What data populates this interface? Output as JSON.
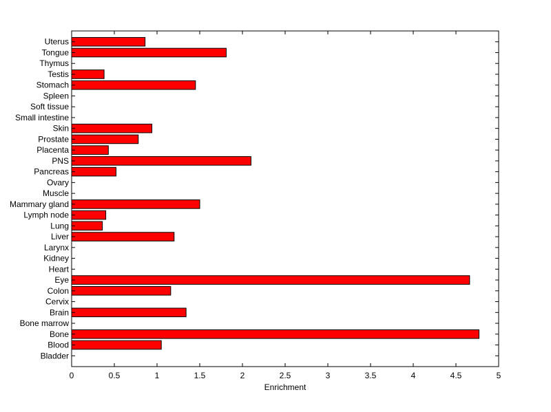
{
  "chart_data": {
    "type": "bar",
    "orientation": "horizontal",
    "title": "",
    "xlabel": "Enrichment",
    "ylabel": "",
    "xlim": [
      0,
      5
    ],
    "xticks": [
      "0",
      "0.5",
      "1",
      "1.5",
      "2",
      "2.5",
      "3",
      "3.5",
      "4",
      "4.5",
      "5"
    ],
    "grid": false,
    "bar_color": "#ff0000",
    "categories": [
      "Uterus",
      "Tongue",
      "Thymus",
      "Testis",
      "Stomach",
      "Spleen",
      "Soft tissue",
      "Small intestine",
      "Skin",
      "Prostate",
      "Placenta",
      "PNS",
      "Pancreas",
      "Ovary",
      "Muscle",
      "Mammary gland",
      "Lymph node",
      "Lung",
      "Liver",
      "Larynx",
      "Kidney",
      "Heart",
      "Eye",
      "Colon",
      "Cervix",
      "Brain",
      "Bone marrow",
      "Bone",
      "Blood",
      "Bladder"
    ],
    "values": [
      0.86,
      1.81,
      0,
      0.38,
      1.45,
      0,
      0,
      0,
      0.94,
      0.78,
      0.43,
      2.1,
      0.52,
      0,
      0,
      1.5,
      0.4,
      0.36,
      1.2,
      0,
      0,
      0,
      4.66,
      1.16,
      0,
      1.34,
      0,
      4.77,
      1.05,
      0
    ]
  }
}
